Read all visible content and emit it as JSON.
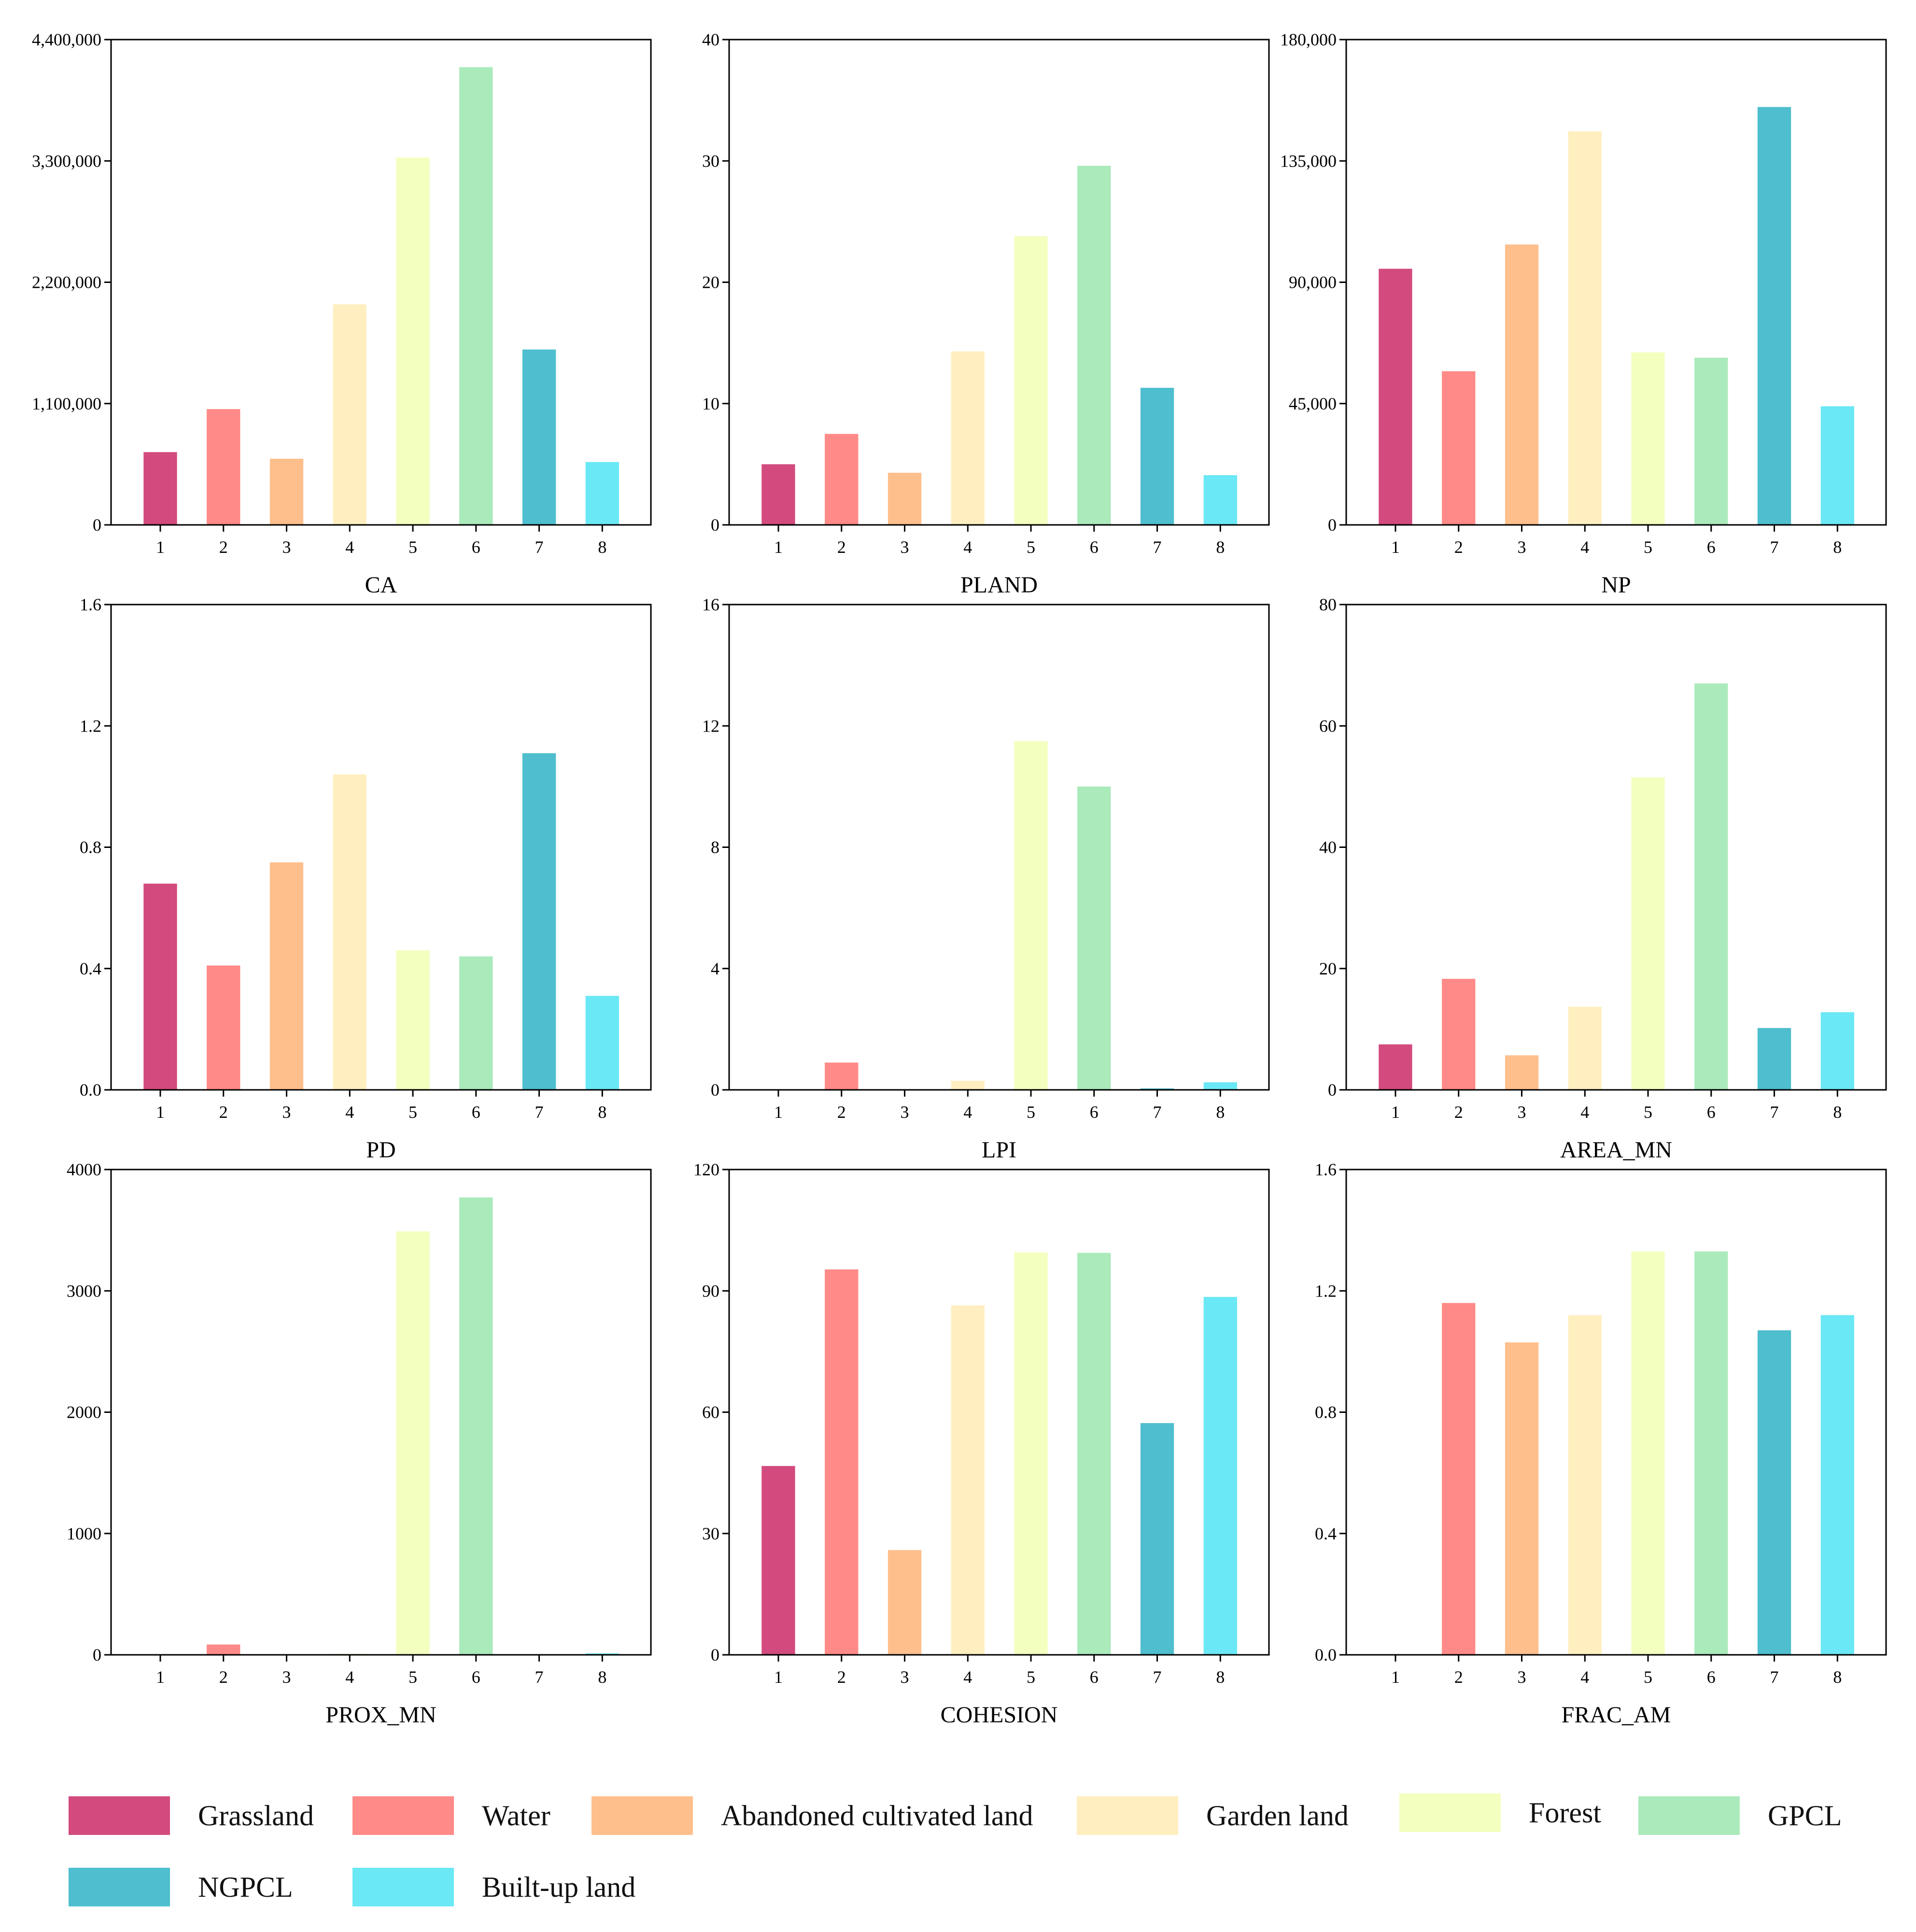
{
  "chart_data": [
    {
      "type": "bar",
      "title": "CA",
      "categories": [
        "1",
        "2",
        "3",
        "4",
        "5",
        "6",
        "7",
        "8"
      ],
      "values": [
        660000,
        1050000,
        600000,
        2000000,
        3330000,
        4150000,
        1590000,
        570000
      ],
      "ylim": [
        0,
        4400000
      ],
      "yticks": [
        0,
        1100000,
        2200000,
        3300000,
        4400000
      ],
      "ytick_labels": [
        "0",
        "1,100,000",
        "2,200,000",
        "3,300,000",
        "4,400,000"
      ]
    },
    {
      "type": "bar",
      "title": "PLAND",
      "categories": [
        "1",
        "2",
        "3",
        "4",
        "5",
        "6",
        "7",
        "8"
      ],
      "values": [
        5.0,
        7.5,
        4.3,
        14.3,
        23.8,
        29.6,
        11.3,
        4.1
      ],
      "ylim": [
        0,
        40
      ],
      "yticks": [
        0,
        10,
        20,
        30,
        40
      ],
      "ytick_labels": [
        "0",
        "10",
        "20",
        "30",
        "40"
      ]
    },
    {
      "type": "bar",
      "title": "NP",
      "categories": [
        "1",
        "2",
        "3",
        "4",
        "5",
        "6",
        "7",
        "8"
      ],
      "values": [
        95000,
        57000,
        104000,
        146000,
        64000,
        62000,
        155000,
        44000
      ],
      "ylim": [
        0,
        180000
      ],
      "yticks": [
        0,
        45000,
        90000,
        135000,
        180000
      ],
      "ytick_labels": [
        "0",
        "45,000",
        "90,000",
        "135,000",
        "180,000"
      ]
    },
    {
      "type": "bar",
      "title": "PD",
      "categories": [
        "1",
        "2",
        "3",
        "4",
        "5",
        "6",
        "7",
        "8"
      ],
      "values": [
        0.68,
        0.41,
        0.75,
        1.04,
        0.46,
        0.44,
        1.11,
        0.31
      ],
      "ylim": [
        0,
        1.6
      ],
      "yticks": [
        0,
        0.4,
        0.8,
        1.2,
        1.6
      ],
      "ytick_labels": [
        "0.0",
        "0.4",
        "0.8",
        "1.2",
        "1.6"
      ]
    },
    {
      "type": "bar",
      "title": "LPI",
      "categories": [
        "1",
        "2",
        "3",
        "4",
        "5",
        "6",
        "7",
        "8"
      ],
      "values": [
        0,
        0.9,
        0,
        0.3,
        11.5,
        10.0,
        0.05,
        0.25
      ],
      "ylim": [
        0,
        16
      ],
      "yticks": [
        0,
        4,
        8,
        12,
        16
      ],
      "ytick_labels": [
        "0",
        "4",
        "8",
        "12",
        "16"
      ]
    },
    {
      "type": "bar",
      "title": "AREA_MN",
      "categories": [
        "1",
        "2",
        "3",
        "4",
        "5",
        "6",
        "7",
        "8"
      ],
      "values": [
        7.5,
        18.3,
        5.7,
        13.7,
        51.5,
        67.0,
        10.2,
        12.8
      ],
      "ylim": [
        0,
        80
      ],
      "yticks": [
        0,
        20,
        40,
        60,
        80
      ],
      "ytick_labels": [
        "0",
        "20",
        "40",
        "60",
        "80"
      ]
    },
    {
      "type": "bar",
      "title": "PROX_MN",
      "categories": [
        "1",
        "2",
        "3",
        "4",
        "5",
        "6",
        "7",
        "8"
      ],
      "values": [
        0,
        85,
        0,
        8,
        3490,
        3770,
        0,
        12
      ],
      "ylim": [
        0,
        4000
      ],
      "yticks": [
        0,
        1000,
        2000,
        3000,
        4000
      ],
      "ytick_labels": [
        "0",
        "1000",
        "2000",
        "3000",
        "4000"
      ]
    },
    {
      "type": "bar",
      "title": "COHESION",
      "categories": [
        "1",
        "2",
        "3",
        "4",
        "5",
        "6",
        "7",
        "8"
      ],
      "values": [
        46.7,
        95.3,
        25.9,
        86.4,
        99.5,
        99.4,
        57.3,
        88.5
      ],
      "ylim": [
        0,
        120
      ],
      "yticks": [
        0,
        30,
        60,
        90,
        120
      ],
      "ytick_labels": [
        "0",
        "30",
        "60",
        "90",
        "120"
      ]
    },
    {
      "type": "bar",
      "title": "FRAC_AM",
      "categories": [
        "1",
        "2",
        "3",
        "4",
        "5",
        "6",
        "7",
        "8"
      ],
      "values": [
        0,
        1.16,
        1.03,
        1.12,
        1.33,
        1.33,
        1.07,
        1.12
      ],
      "ylim": [
        0,
        1.6
      ],
      "yticks": [
        0,
        0.4,
        0.8,
        1.2,
        1.6
      ],
      "ytick_labels": [
        "0.0",
        "0.4",
        "0.8",
        "1.2",
        "1.6"
      ]
    }
  ],
  "bar_colors": [
    "#d24a7e",
    "#ff8a87",
    "#ffbf8c",
    "#ffefc0",
    "#f3ffbf",
    "#aaeabb",
    "#4fbece",
    "#6ae8f5"
  ],
  "legend": {
    "items": [
      {
        "label": "Grassland",
        "color": "#d24a7e"
      },
      {
        "label": "Water",
        "color": "#ff8a87"
      },
      {
        "label": "Abandoned cultivated land",
        "color": "#ffbf8c"
      },
      {
        "label": "Garden land",
        "color": "#ffefc0"
      },
      {
        "label": "Forest",
        "color": "#f3ffbf"
      },
      {
        "label": "GPCL",
        "color": "#aaeabb"
      },
      {
        "label": "NGPCL",
        "color": "#4fbece"
      },
      {
        "label": "Built-up land",
        "color": "#6ae8f5"
      }
    ]
  }
}
